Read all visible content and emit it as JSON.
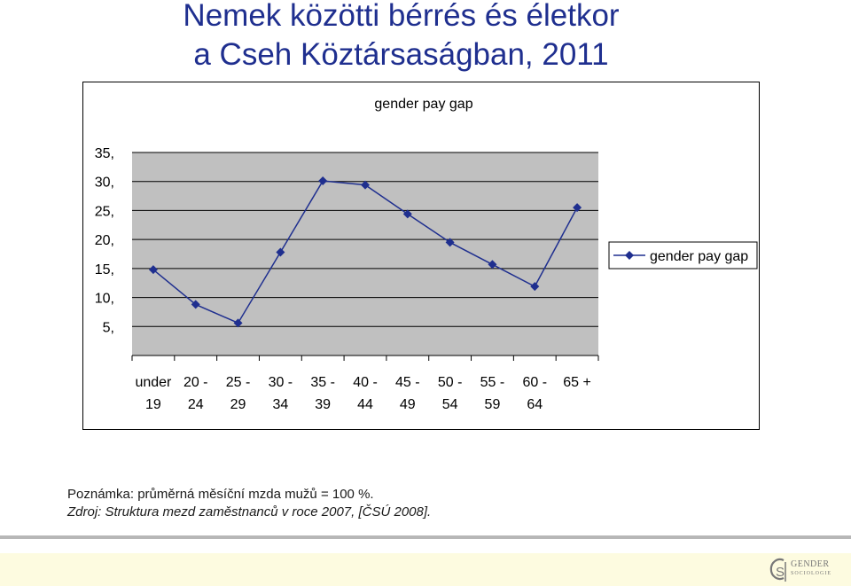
{
  "page": {
    "title_line_1": "Nemek közötti bérrés és életkor",
    "title_line_2": "a Cseh Köztársaságban, 2011"
  },
  "notes": {
    "line_1": "Poznámka: průměrná měsíční mzda mužů = 100 %.",
    "line_2": "Zdroj: Struktura mezd zaměstnanců v roce 2007, [ČSÚ 2008]."
  },
  "logo": {
    "text": "GENDER",
    "subtext": "SOCIOLOGIE"
  },
  "chart_data": {
    "type": "line",
    "title": "gender pay gap",
    "categories": [
      [
        "under",
        "19"
      ],
      [
        "20 -",
        "24"
      ],
      [
        "25 -",
        "29"
      ],
      [
        "30 -",
        "34"
      ],
      [
        "35 -",
        "39"
      ],
      [
        "40 -",
        "44"
      ],
      [
        "45 -",
        "49"
      ],
      [
        "50 -",
        "54"
      ],
      [
        "55 -",
        "59"
      ],
      [
        "60 -",
        "64"
      ],
      [
        "65 +",
        ""
      ]
    ],
    "series": [
      {
        "name": "gender pay gap",
        "values": [
          14.8,
          8.8,
          5.6,
          17.8,
          30.1,
          29.4,
          24.4,
          19.5,
          15.7,
          11.9,
          25.5
        ],
        "color": "#1f2f8f"
      }
    ],
    "y_ticks": [
      "5,",
      "10,",
      "15,",
      "20,",
      "25,",
      "30,",
      "35,"
    ],
    "y_tick_values": [
      5,
      10,
      15,
      20,
      25,
      30,
      35
    ],
    "ylim": [
      0,
      35
    ],
    "plot_background": "#c0c0c0",
    "grid": true,
    "legend": "right",
    "xlabel": "",
    "ylabel": ""
  }
}
